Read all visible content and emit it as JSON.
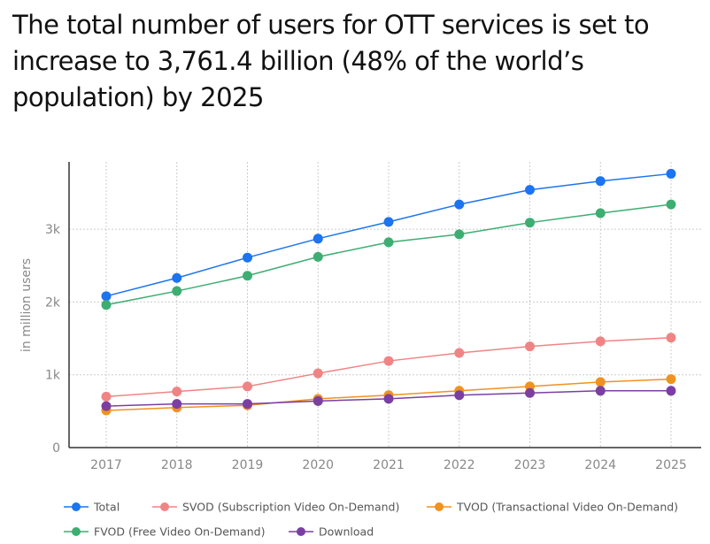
{
  "chart_data": {
    "type": "line",
    "title": "The total number of users for OTT services is set to increase to 3,761.4 billion (48% of the world’s population) by 2025",
    "ylabel": "in million users",
    "xlabel": "",
    "categories": [
      "2017",
      "2018",
      "2019",
      "2020",
      "2021",
      "2022",
      "2023",
      "2024",
      "2025"
    ],
    "ylim": [
      0,
      3900
    ],
    "yticks": [
      0,
      1000,
      2000,
      3000
    ],
    "ytick_labels": [
      "0",
      "1k",
      "2k",
      "3k"
    ],
    "grid": true,
    "legend_position": "bottom",
    "series": [
      {
        "name": "Total",
        "color": "#1c74ee",
        "values": [
          2080,
          2330,
          2610,
          2870,
          3100,
          3340,
          3540,
          3660,
          3761.4
        ]
      },
      {
        "name": "SVOD (Subscription Video On-Demand)",
        "color": "#f08484",
        "values": [
          700,
          770,
          840,
          1020,
          1190,
          1300,
          1390,
          1460,
          1510
        ]
      },
      {
        "name": "TVOD (Transactional Video On-Demand)",
        "color": "#f0921e",
        "values": [
          510,
          550,
          580,
          670,
          720,
          780,
          840,
          900,
          940
        ]
      },
      {
        "name": "FVOD (Free Video On-Demand)",
        "color": "#3dae72",
        "values": [
          1960,
          2150,
          2360,
          2620,
          2820,
          2930,
          3090,
          3220,
          3340
        ]
      },
      {
        "name": "Download",
        "color": "#7b3fa2",
        "values": [
          570,
          600,
          600,
          640,
          670,
          720,
          750,
          780,
          780
        ]
      }
    ]
  }
}
